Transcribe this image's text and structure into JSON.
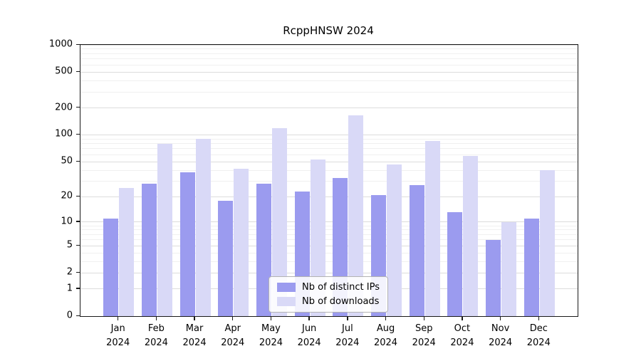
{
  "chart_data": {
    "type": "bar",
    "title": "RcppHNSW 2024",
    "categories": [
      "Jan",
      "Feb",
      "Mar",
      "Apr",
      "May",
      "Jun",
      "Jul",
      "Aug",
      "Sep",
      "Oct",
      "Nov",
      "Dec"
    ],
    "year_label": "2024",
    "series": [
      {
        "name": "Nb of distinct IPs",
        "color": "#9b9bef",
        "values": [
          11,
          28,
          38,
          18,
          28,
          23,
          33,
          21,
          27,
          13,
          6,
          11
        ]
      },
      {
        "name": "Nb of downloads",
        "color": "#d9d9f7",
        "values": [
          25,
          80,
          90,
          42,
          120,
          53,
          165,
          47,
          85,
          58,
          10,
          40
        ]
      }
    ],
    "y_ticks": [
      0,
      1,
      2,
      5,
      10,
      20,
      50,
      100,
      200,
      500,
      1000
    ],
    "ylim": [
      0,
      1000
    ],
    "y_scale": "log1p",
    "grid": true,
    "legend_position": "lower center",
    "xlabel": "",
    "ylabel": ""
  }
}
